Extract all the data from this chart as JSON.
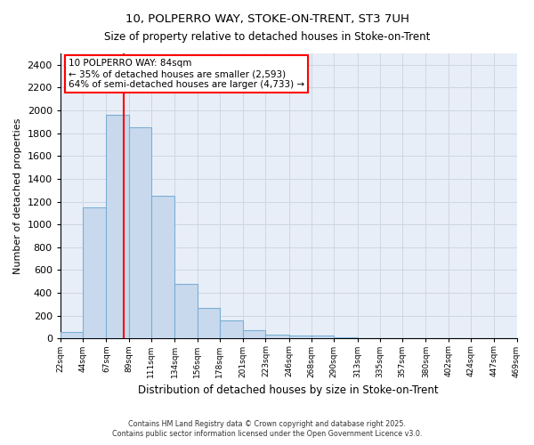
{
  "title1": "10, POLPERRO WAY, STOKE-ON-TRENT, ST3 7UH",
  "title2": "Size of property relative to detached houses in Stoke-on-Trent",
  "xlabel": "Distribution of detached houses by size in Stoke-on-Trent",
  "ylabel": "Number of detached properties",
  "bar_color": "#c8d9ee",
  "bar_edge_color": "#7bafd4",
  "annotation_text": "10 POLPERRO WAY: 84sqm\n← 35% of detached houses are smaller (2,593)\n64% of semi-detached houses are larger (4,733) →",
  "vline_x": 84,
  "vline_color": "red",
  "footer1": "Contains HM Land Registry data © Crown copyright and database right 2025.",
  "footer2": "Contains public sector information licensed under the Open Government Licence v3.0.",
  "bin_edges": [
    22,
    44,
    67,
    89,
    111,
    134,
    156,
    178,
    201,
    223,
    246,
    268,
    290,
    313,
    335,
    357,
    380,
    402,
    424,
    447,
    469
  ],
  "values": [
    60,
    1150,
    1960,
    1850,
    1250,
    480,
    270,
    160,
    75,
    35,
    30,
    25,
    10,
    5,
    3,
    2,
    1,
    1,
    0,
    1
  ],
  "ylim": [
    0,
    2500
  ],
  "yticks": [
    0,
    200,
    400,
    600,
    800,
    1000,
    1200,
    1400,
    1600,
    1800,
    2000,
    2200,
    2400
  ],
  "tick_labels": [
    "22sqm",
    "44sqm",
    "67sqm",
    "89sqm",
    "111sqm",
    "134sqm",
    "156sqm",
    "178sqm",
    "201sqm",
    "223sqm",
    "246sqm",
    "268sqm",
    "290sqm",
    "313sqm",
    "335sqm",
    "357sqm",
    "380sqm",
    "402sqm",
    "424sqm",
    "447sqm",
    "469sqm"
  ],
  "grid_color": "#cdd6e3",
  "background_color": "#e8eef7"
}
